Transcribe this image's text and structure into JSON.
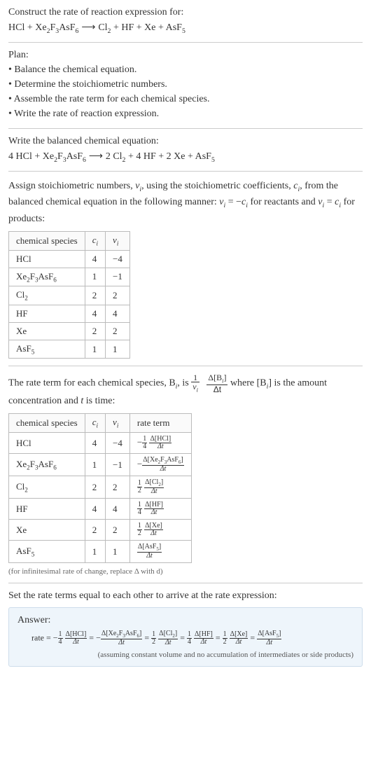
{
  "header": {
    "construct_label": "Construct the rate of reaction expression for:",
    "unbalanced_eq_parts": {
      "lhs1": "HCl",
      "plus1": " + ",
      "lhs2": "Xe",
      "lhs2_sub1": "2",
      "lhs2b": "F",
      "lhs2_sub2": "3",
      "lhs2c": "AsF",
      "lhs2_sub3": "6",
      "arrow": " ⟶ ",
      "rhs1": "Cl",
      "rhs1_sub": "2",
      "plus2": " + ",
      "rhs2": "HF",
      "plus3": " + ",
      "rhs3": "Xe",
      "plus4": " + ",
      "rhs4": "AsF",
      "rhs4_sub": "5"
    }
  },
  "plan": {
    "title": "Plan:",
    "items": [
      "• Balance the chemical equation.",
      "• Determine the stoichiometric numbers.",
      "• Assemble the rate term for each chemical species.",
      "• Write the rate of reaction expression."
    ]
  },
  "balanced": {
    "title": "Write the balanced chemical equation:",
    "eq": {
      "c1": "4 HCl",
      "plus1": " + ",
      "c2a": "Xe",
      "c2s1": "2",
      "c2b": "F",
      "c2s2": "3",
      "c2c": "AsF",
      "c2s3": "6",
      "arrow": " ⟶ ",
      "c3": "2 Cl",
      "c3s": "2",
      "plus2": " + ",
      "c4": "4 HF",
      "plus3": " + ",
      "c5": "2 Xe",
      "plus4": " + ",
      "c6": "AsF",
      "c6s": "5"
    }
  },
  "assign": {
    "text_pre": "Assign stoichiometric numbers, ",
    "nu_i": "ν",
    "nu_sub": "i",
    "text_mid1": ", using the stoichiometric coefficients, ",
    "c_i": "c",
    "c_sub": "i",
    "text_mid2": ", from the balanced chemical equation in the following manner: ",
    "eq1_lhs": "ν",
    "eq1_lsub": "i",
    "eq1_eq": " = −",
    "eq1_rhs": "c",
    "eq1_rsub": "i",
    "text_mid3": " for reactants and ",
    "eq2_lhs": "ν",
    "eq2_lsub": "i",
    "eq2_eq": " = ",
    "eq2_rhs": "c",
    "eq2_rsub": "i",
    "text_end": " for products:"
  },
  "table1": {
    "headers": {
      "species": "chemical species",
      "c": "c",
      "c_sub": "i",
      "nu": "ν",
      "nu_sub": "i"
    },
    "rows": [
      {
        "species_html": "HCl",
        "c": "4",
        "nu": "−4"
      },
      {
        "species_html": "Xe<sub>2</sub>F<sub>3</sub>AsF<sub>6</sub>",
        "c": "1",
        "nu": "−1"
      },
      {
        "species_html": "Cl<sub>2</sub>",
        "c": "2",
        "nu": "2"
      },
      {
        "species_html": "HF",
        "c": "4",
        "nu": "4"
      },
      {
        "species_html": "Xe",
        "c": "2",
        "nu": "2"
      },
      {
        "species_html": "AsF<sub>5</sub>",
        "c": "1",
        "nu": "1"
      }
    ]
  },
  "rate_intro": {
    "text1": "The rate term for each chemical species, B",
    "sub1": "i",
    "text2": ", is ",
    "frac1_top": "1",
    "frac1_bot_a": "ν",
    "frac1_bot_sub": "i",
    "frac2_top_a": "Δ[B",
    "frac2_top_sub": "i",
    "frac2_top_b": "]",
    "frac2_bot": "Δt",
    "text3": " where [B",
    "sub2": "i",
    "text4": "] is the amount concentration and ",
    "t_ital": "t",
    "text5": " is time:"
  },
  "table2": {
    "headers": {
      "species": "chemical species",
      "c": "c",
      "c_sub": "i",
      "nu": "ν",
      "nu_sub": "i",
      "rate": "rate term"
    },
    "rows": [
      {
        "species_html": "HCl",
        "c": "4",
        "nu": "−4",
        "sign": "−",
        "coef_top": "1",
        "coef_bot": "4",
        "d_top": "Δ[HCl]",
        "d_bot": "Δt"
      },
      {
        "species_html": "Xe<sub>2</sub>F<sub>3</sub>AsF<sub>6</sub>",
        "c": "1",
        "nu": "−1",
        "sign": "−",
        "coef_top": "",
        "coef_bot": "",
        "d_top": "Δ[Xe<sub>2</sub>F<sub>3</sub>AsF<sub>6</sub>]",
        "d_bot": "Δt"
      },
      {
        "species_html": "Cl<sub>2</sub>",
        "c": "2",
        "nu": "2",
        "sign": "",
        "coef_top": "1",
        "coef_bot": "2",
        "d_top": "Δ[Cl<sub>2</sub>]",
        "d_bot": "Δt"
      },
      {
        "species_html": "HF",
        "c": "4",
        "nu": "4",
        "sign": "",
        "coef_top": "1",
        "coef_bot": "4",
        "d_top": "Δ[HF]",
        "d_bot": "Δt"
      },
      {
        "species_html": "Xe",
        "c": "2",
        "nu": "2",
        "sign": "",
        "coef_top": "1",
        "coef_bot": "2",
        "d_top": "Δ[Xe]",
        "d_bot": "Δt"
      },
      {
        "species_html": "AsF<sub>5</sub>",
        "c": "1",
        "nu": "1",
        "sign": "",
        "coef_top": "",
        "coef_bot": "",
        "d_top": "Δ[AsF<sub>5</sub>]",
        "d_bot": "Δt"
      }
    ]
  },
  "note_inf": "(for infinitesimal rate of change, replace Δ with d)",
  "set_equal": "Set the rate terms equal to each other to arrive at the rate expression:",
  "answer": {
    "title": "Answer:",
    "prefix": "rate = ",
    "terms": [
      {
        "sign": "−",
        "coef_top": "1",
        "coef_bot": "4",
        "d_top": "Δ[HCl]",
        "d_bot": "Δt"
      },
      {
        "sign": "−",
        "coef_top": "",
        "coef_bot": "",
        "d_top": "Δ[Xe<sub>2</sub>F<sub>3</sub>AsF<sub>6</sub>]",
        "d_bot": "Δt"
      },
      {
        "sign": "",
        "coef_top": "1",
        "coef_bot": "2",
        "d_top": "Δ[Cl<sub>2</sub>]",
        "d_bot": "Δt"
      },
      {
        "sign": "",
        "coef_top": "1",
        "coef_bot": "4",
        "d_top": "Δ[HF]",
        "d_bot": "Δt"
      },
      {
        "sign": "",
        "coef_top": "1",
        "coef_bot": "2",
        "d_top": "Δ[Xe]",
        "d_bot": "Δt"
      },
      {
        "sign": "",
        "coef_top": "",
        "coef_bot": "",
        "d_top": "Δ[AsF<sub>5</sub>]",
        "d_bot": "Δt"
      }
    ],
    "note": "(assuming constant volume and no accumulation of intermediates or side products)"
  },
  "colors": {
    "text": "#333333",
    "rule": "#cccccc",
    "border": "#bbbbbb",
    "answer_bg": "#eef5fb",
    "answer_border": "#cdddeb",
    "note": "#666666"
  }
}
